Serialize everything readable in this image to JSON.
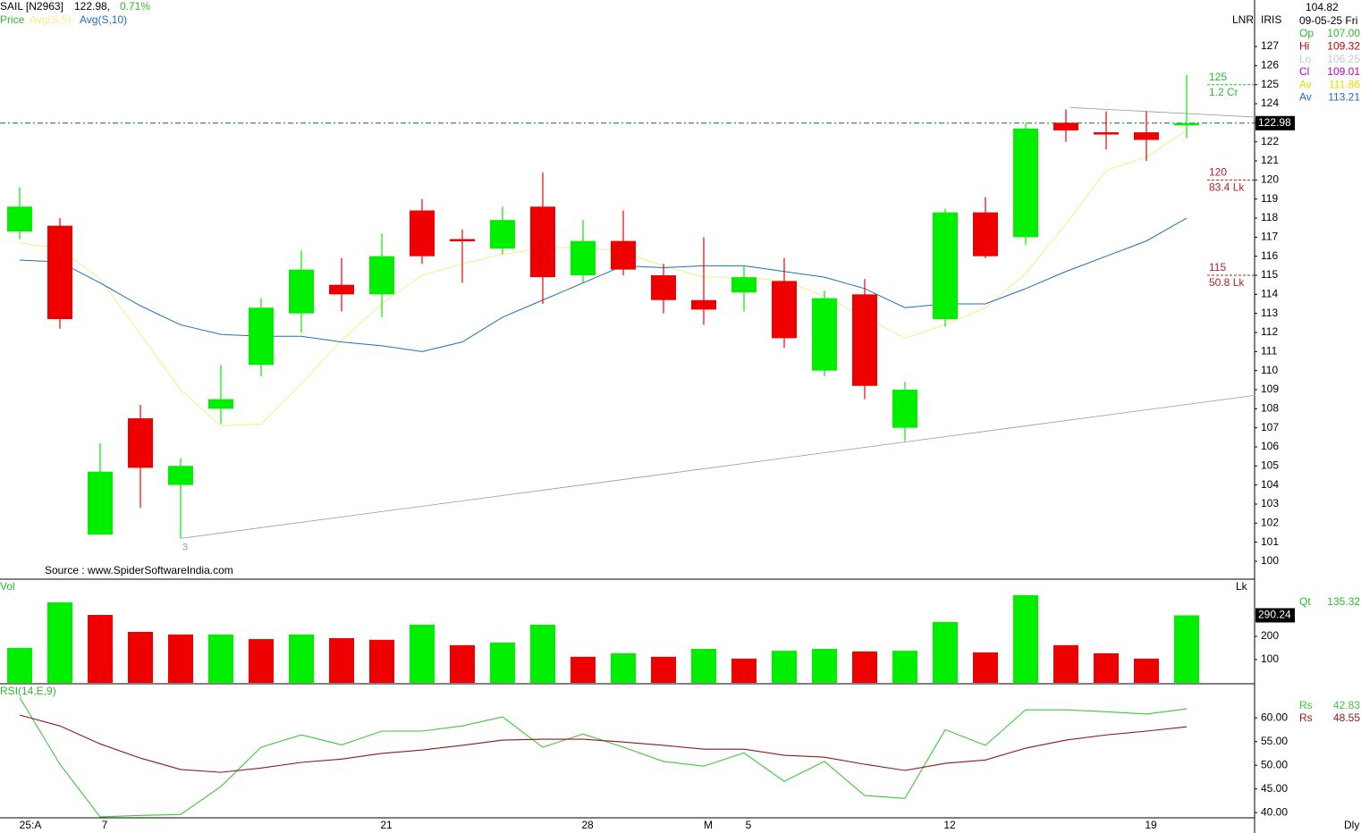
{
  "header": {
    "symbol": "SAIL [N2963]",
    "price": "122.98,",
    "change": "0.71%",
    "source": "Source : www.SpiderSoftwareIndia.com"
  },
  "info": {
    "mode": "LNR",
    "scale": "IRIS",
    "cursor_value": "104.82",
    "date": "09-05-25 Fri",
    "timeframe": "Dly",
    "rows": [
      {
        "label": "Op",
        "value": "107.00",
        "color": "#2db82d"
      },
      {
        "label": "Hi",
        "value": "109.32",
        "color": "#c00000"
      },
      {
        "label": "Lo",
        "value": "106.25",
        "color": "#c8c8c8"
      },
      {
        "label": "Cl",
        "value": "109.01",
        "color": "#c000c0"
      },
      {
        "label": "Av",
        "value": "111.86",
        "color": "#e0e000"
      },
      {
        "label": "Av",
        "value": "113.21",
        "color": "#1f6fb5"
      }
    ]
  },
  "chart_data": [
    {
      "type": "candlestick",
      "name": "Price",
      "up_color": "#00ee00",
      "down_color": "#ee0000",
      "categories": [
        "25:A",
        null,
        "7",
        null,
        null,
        null,
        null,
        null,
        null,
        "21",
        null,
        null,
        null,
        null,
        "28",
        null,
        null,
        "M",
        "5",
        null,
        null,
        null,
        null,
        "12",
        null,
        null,
        null,
        null,
        "19",
        null
      ],
      "open": [
        117.3,
        117.6,
        101.4,
        107.5,
        104.0,
        108.0,
        110.3,
        113.0,
        114.5,
        114.0,
        118.4,
        116.9,
        116.4,
        118.6,
        115.0,
        116.8,
        115.0,
        113.7,
        114.1,
        114.7,
        110.0,
        114.0,
        107.0,
        112.7,
        118.3,
        117.0,
        123.0,
        122.5,
        122.5,
        122.9
      ],
      "high": [
        119.6,
        118.0,
        106.2,
        108.2,
        105.4,
        110.3,
        113.8,
        116.3,
        115.9,
        117.2,
        119.0,
        117.4,
        118.6,
        120.4,
        117.9,
        118.4,
        115.6,
        117.0,
        115.5,
        115.9,
        114.2,
        114.8,
        109.4,
        118.5,
        119.1,
        123.0,
        123.7,
        123.6,
        123.6,
        125.5
      ],
      "low": [
        116.9,
        112.2,
        101.4,
        102.8,
        101.2,
        107.2,
        109.7,
        112.0,
        113.1,
        112.8,
        115.6,
        114.6,
        116.1,
        113.5,
        114.6,
        115.0,
        113.0,
        112.4,
        113.1,
        111.2,
        109.7,
        108.5,
        106.3,
        112.3,
        115.9,
        116.6,
        122.0,
        121.6,
        121.0,
        122.2
      ],
      "close": [
        118.6,
        112.7,
        104.7,
        104.9,
        105.0,
        108.5,
        113.3,
        115.3,
        114.0,
        116.0,
        116.0,
        116.8,
        117.9,
        114.9,
        116.8,
        115.3,
        113.7,
        113.2,
        114.9,
        111.7,
        113.8,
        109.2,
        109.0,
        118.3,
        116.0,
        122.7,
        122.6,
        122.4,
        122.1,
        122.98
      ],
      "series": [
        {
          "name": "Avg(S,5)",
          "color": "#f2ee8a",
          "values": [
            116.7,
            116.4,
            114.8,
            111.9,
            109.0,
            107.1,
            107.2,
            109.3,
            111.6,
            113.5,
            115.0,
            115.6,
            116.1,
            116.4,
            116.5,
            116.2,
            115.5,
            114.9,
            114.9,
            114.7,
            113.9,
            112.8,
            111.7,
            112.4,
            113.3,
            115.1,
            117.7,
            120.5,
            121.2,
            122.6
          ]
        },
        {
          "name": "Avg(S,10)",
          "color": "#1f6fb5",
          "values": [
            115.8,
            115.7,
            114.6,
            113.4,
            112.4,
            111.9,
            111.8,
            111.8,
            111.5,
            111.3,
            111.0,
            111.5,
            112.8,
            113.7,
            114.6,
            115.5,
            115.4,
            115.5,
            115.5,
            115.2,
            114.9,
            114.3,
            113.3,
            113.5,
            113.5,
            114.3,
            115.2,
            116.0,
            116.8,
            118.0
          ]
        }
      ],
      "last_value": 122.98,
      "levels": [
        {
          "price": 125,
          "volume": "1.2 Cr",
          "color": "#2db82d"
        },
        {
          "price": 120,
          "volume": "83.4 Lk",
          "color": "#b22222"
        },
        {
          "price": 115,
          "volume": "50.8 Lk",
          "color": "#b22222"
        }
      ],
      "trendlines": [
        {
          "x": [
            4,
            30.7
          ],
          "y": [
            101.2,
            108.7
          ],
          "label": "3"
        },
        {
          "x": [
            26.1,
            30.7
          ],
          "y": [
            123.8,
            123.3
          ]
        }
      ],
      "ylim": [
        99.06,
        129.44
      ],
      "yticks": [
        100,
        101,
        102,
        103,
        104,
        105,
        106,
        107,
        108,
        109,
        110,
        111,
        112,
        113,
        114,
        115,
        116,
        117,
        118,
        119,
        120,
        121,
        122,
        123,
        124,
        125,
        126,
        127
      ]
    },
    {
      "type": "bar",
      "name": "Vol",
      "unit": "Lk",
      "qt_label": "Qt",
      "qt_value": "135.32",
      "values": [
        150,
        346,
        292,
        219,
        208,
        208,
        188,
        208,
        192,
        185,
        250,
        162,
        173,
        250,
        112,
        127,
        112,
        146,
        104,
        138,
        146,
        135,
        138,
        262,
        131,
        377,
        162,
        127,
        104,
        290.24
      ],
      "colors": [
        "#00ee00",
        "#00ee00",
        "#ee0000",
        "#ee0000",
        "#ee0000",
        "#00ee00",
        "#ee0000",
        "#00ee00",
        "#ee0000",
        "#ee0000",
        "#00ee00",
        "#ee0000",
        "#00ee00",
        "#00ee00",
        "#ee0000",
        "#00ee00",
        "#ee0000",
        "#00ee00",
        "#ee0000",
        "#00ee00",
        "#00ee00",
        "#ee0000",
        "#00ee00",
        "#00ee00",
        "#ee0000",
        "#00ee00",
        "#ee0000",
        "#ee0000",
        "#ee0000",
        "#00ee00"
      ],
      "last_value": 290.24,
      "ylim": [
        0,
        438
      ],
      "yticks": [
        100,
        200
      ]
    },
    {
      "type": "line",
      "name": "RSI(14,E,9)",
      "series": [
        {
          "name": "Rs",
          "readout": "42.83",
          "color": "#3cc83c",
          "values": [
            64.3,
            50.2,
            39.1,
            39.4,
            39.6,
            45.5,
            53.8,
            56.4,
            54.3,
            57.2,
            57.2,
            58.3,
            60.2,
            53.8,
            56.6,
            53.8,
            50.8,
            49.8,
            52.6,
            46.6,
            50.8,
            43.6,
            43.0,
            57.5,
            54.2,
            61.7,
            61.7,
            61.3,
            60.8,
            61.9
          ]
        },
        {
          "name": "Rs",
          "readout": "48.55",
          "color": "#8b1a1a",
          "values": [
            60.6,
            58.3,
            54.5,
            51.5,
            49.1,
            48.5,
            49.4,
            50.6,
            51.3,
            52.5,
            53.2,
            54.2,
            55.3,
            55.5,
            55.5,
            54.9,
            54.2,
            53.4,
            53.4,
            52.1,
            51.7,
            50.2,
            48.9,
            50.4,
            51.1,
            53.6,
            55.3,
            56.4,
            57.2,
            58.1
          ]
        }
      ],
      "ylim": [
        38.9,
        67.2
      ],
      "yticks": [
        {
          "value": 40,
          "label": "40.00"
        },
        {
          "value": 45,
          "label": "45.00"
        },
        {
          "value": 50,
          "label": "50.00"
        },
        {
          "value": 55,
          "label": "55.00"
        },
        {
          "value": 60,
          "label": "60.00"
        }
      ]
    }
  ]
}
